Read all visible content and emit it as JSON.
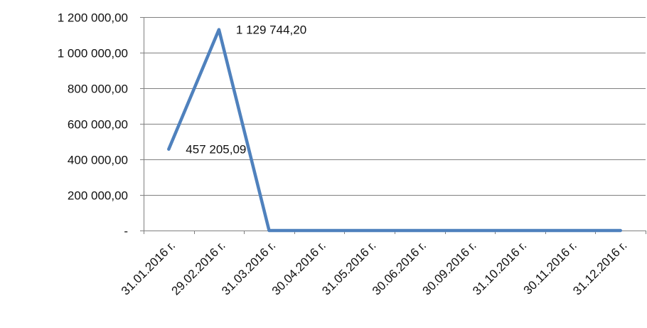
{
  "chart_data": {
    "type": "line",
    "categories": [
      "31.01.2016 г.",
      "29.02.2016 г.",
      "31.03.2016 г.",
      "30.04.2016 г.",
      "31.05.2016 г.",
      "30.06.2016 г.",
      "30.09.2016 г.",
      "31.10.2016 г.",
      "30.11.2016 г.",
      "31.12.2016 г."
    ],
    "series": [
      {
        "values": [
          457205.09,
          1129744.2,
          0,
          0,
          0,
          0,
          0,
          0,
          0,
          0
        ]
      }
    ],
    "data_labels": [
      {
        "index": 0,
        "text": "457 205,09"
      },
      {
        "index": 1,
        "text": "1 129 744,20"
      }
    ],
    "y_ticks": [
      {
        "value": 0,
        "label": "-"
      },
      {
        "value": 200000,
        "label": "200 000,00"
      },
      {
        "value": 400000,
        "label": "400 000,00"
      },
      {
        "value": 600000,
        "label": "600 000,00"
      },
      {
        "value": 800000,
        "label": "800 000,00"
      },
      {
        "value": 1000000,
        "label": "1 000 000,00"
      },
      {
        "value": 1200000,
        "label": "1 200 000,00"
      }
    ],
    "ylim": [
      0,
      1200000
    ],
    "grid": true,
    "legend": "none",
    "title": "",
    "xlabel": "",
    "ylabel": "",
    "colors": {
      "line": "#4f81bd",
      "grid": "#808080",
      "axis": "#808080",
      "text": "#111111"
    }
  }
}
